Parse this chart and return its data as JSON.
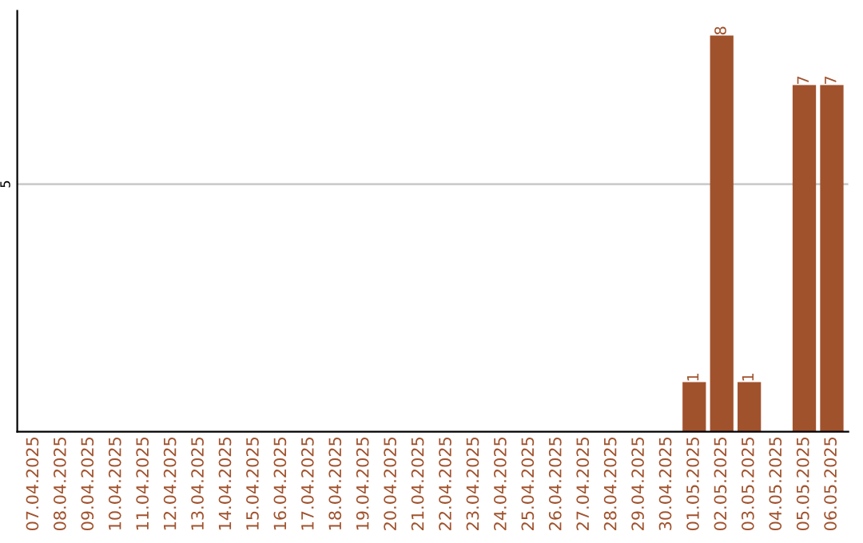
{
  "chart_data": {
    "type": "bar",
    "categories": [
      "07.04.2025",
      "08.04.2025",
      "09.04.2025",
      "10.04.2025",
      "11.04.2025",
      "12.04.2025",
      "13.04.2025",
      "14.04.2025",
      "15.04.2025",
      "16.04.2025",
      "17.04.2025",
      "18.04.2025",
      "19.04.2025",
      "20.04.2025",
      "21.04.2025",
      "22.04.2025",
      "23.04.2025",
      "24.04.2025",
      "25.04.2025",
      "26.04.2025",
      "27.04.2025",
      "28.04.2025",
      "29.04.2025",
      "30.04.2025",
      "01.05.2025",
      "02.05.2025",
      "03.05.2025",
      "04.05.2025",
      "05.05.2025",
      "06.05.2025"
    ],
    "values": [
      null,
      null,
      null,
      null,
      null,
      null,
      null,
      null,
      null,
      null,
      null,
      null,
      null,
      null,
      null,
      null,
      null,
      null,
      null,
      null,
      null,
      null,
      null,
      null,
      1,
      8,
      1,
      null,
      7,
      7
    ],
    "data_labels": true,
    "color": "#a0522d",
    "ylim": [
      0,
      8.5
    ],
    "yticks": [
      5
    ],
    "grid": "y"
  }
}
